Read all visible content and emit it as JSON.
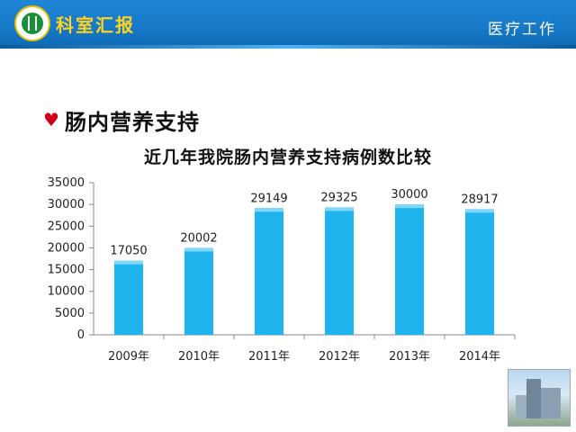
{
  "header": {
    "title": "科室汇报",
    "right_text": "医疗工作",
    "colors": {
      "banner": "#1679c8",
      "title": "#ffd21f"
    }
  },
  "slide": {
    "heading": "肠内营养支持",
    "bullet_icon": "heart-icon"
  },
  "chart_data": {
    "type": "bar",
    "title": "近几年我院肠内营养支持病例数比较",
    "categories": [
      "2009年",
      "2010年",
      "2011年",
      "2012年",
      "2013年",
      "2014年"
    ],
    "values": [
      17050,
      20002,
      29149,
      29325,
      30000,
      28917
    ],
    "ylim": [
      0,
      35000
    ],
    "yticks": [
      0,
      5000,
      10000,
      15000,
      20000,
      25000,
      30000,
      35000
    ],
    "grid": false,
    "bar_color": "#1fb4ee",
    "xlabel": "",
    "ylabel": ""
  },
  "decor": {
    "corner_image": "hospital-building-photo"
  }
}
